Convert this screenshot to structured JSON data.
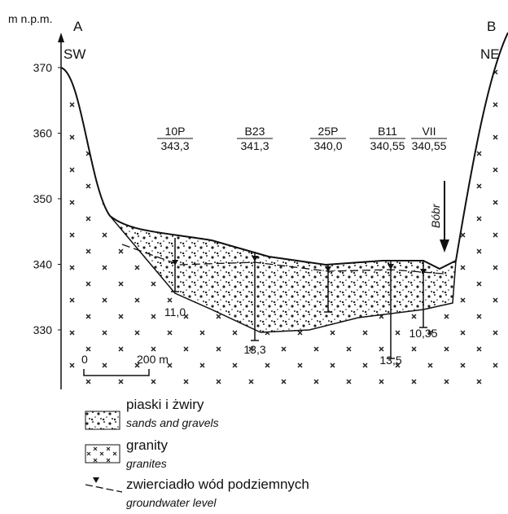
{
  "axis": {
    "label": "m n.p.m.",
    "ticks": [
      "370",
      "360",
      "350",
      "340",
      "330"
    ]
  },
  "ends": [
    {
      "letter": "A",
      "direction": "SW"
    },
    {
      "letter": "B",
      "direction": "NE"
    }
  ],
  "boreholes": [
    {
      "name": "10P",
      "elevation": "343,3",
      "depth": "11,0"
    },
    {
      "name": "B23",
      "elevation": "341,3",
      "depth": "13,3"
    },
    {
      "name": "25P",
      "elevation": "340,0",
      "depth": null
    },
    {
      "name": "B11",
      "elevation": "340,55",
      "depth": "13,5"
    },
    {
      "name": "VII",
      "elevation": "340,55",
      "depth": "10,35"
    }
  ],
  "river": "Bóbr",
  "scale": {
    "start": "0",
    "end": "200 m"
  },
  "legend": [
    {
      "label": "piaski i żwiry",
      "translation": "sands and gravels"
    },
    {
      "label": "granity",
      "translation": "granites"
    },
    {
      "label": "zwierciadło wód podziemnych",
      "translation": "groundwater level"
    }
  ]
}
